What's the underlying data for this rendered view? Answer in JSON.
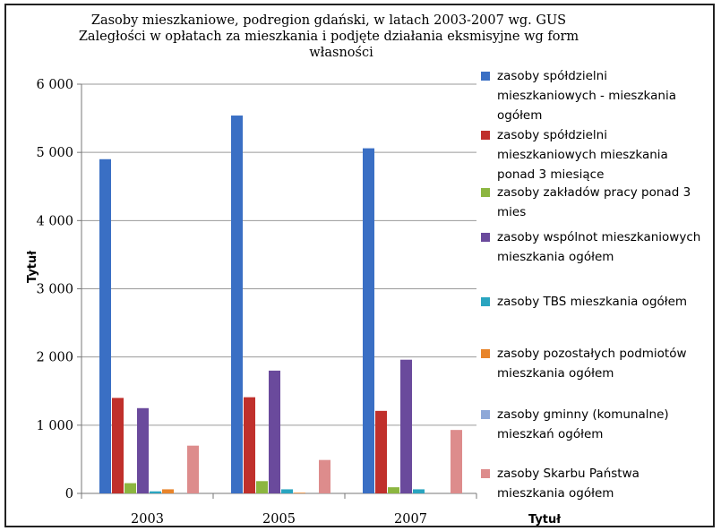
{
  "chart_data": {
    "type": "bar",
    "title_lines": [
      "Zasoby mieszkaniowe, podregion gdański, w latach 2003-2007 wg. GUS",
      "Zaległości w opłatach za mieszkania i podjęte działania eksmisyjne wg form",
      "własności"
    ],
    "xlabel": "Tytuł",
    "ylabel": "Tytuł",
    "categories": [
      "2003",
      "2005",
      "2007"
    ],
    "ylim": [
      0,
      6000
    ],
    "yticks": [
      0,
      1000,
      2000,
      3000,
      4000,
      5000,
      6000
    ],
    "ytick_labels": [
      "0",
      "1 000",
      "2 000",
      "3 000",
      "4 000",
      "5 000",
      "6 000"
    ],
    "grid": true,
    "legend_position": "right",
    "series": [
      {
        "name": "zasoby spółdzielni mieszkaniowych - mieszkania ogółem",
        "color": "#3a6fc4",
        "values": [
          4900,
          5540,
          5060
        ]
      },
      {
        "name": "zasoby spółdzielni mieszkaniowych mieszkania ponad 3 miesiące",
        "color": "#c0302c",
        "values": [
          1400,
          1410,
          1210
        ]
      },
      {
        "name": "zasoby zakładów pracy ponad 3 mies",
        "color": "#8cb640",
        "values": [
          150,
          180,
          90
        ]
      },
      {
        "name": "zasoby wspólnot mieszkaniowych mieszkania ogółem",
        "color": "#6a4a9c",
        "values": [
          1250,
          1800,
          1960
        ]
      },
      {
        "name": "zasoby TBS mieszkania ogółem",
        "color": "#2aa5c0",
        "values": [
          30,
          60,
          60
        ]
      },
      {
        "name": "zasoby pozostałych podmiotów mieszkania ogółem",
        "color": "#e8842a",
        "values": [
          60,
          10,
          0
        ]
      },
      {
        "name": "zasoby gminny (komunalne) mieszkań ogółem",
        "color": "#8ea8d8",
        "values": [
          0,
          0,
          0
        ]
      },
      {
        "name": "zasoby Skarbu Państwa mieszkania ogółem",
        "color": "#dd8c8c",
        "values": [
          700,
          490,
          930
        ]
      }
    ],
    "legend_lines": [
      [
        "zasoby spółdzielni",
        "mieszkaniowych - mieszkania",
        "ogółem"
      ],
      [
        "zasoby spółdzielni",
        "mieszkaniowych mieszkania",
        "ponad 3 miesiące"
      ],
      [
        "zasoby zakładów pracy ponad 3",
        "mies"
      ],
      [
        "zasoby wspólnot mieszkaniowych",
        "mieszkania ogółem"
      ],
      [
        "zasoby TBS mieszkania ogółem"
      ],
      [
        "zasoby pozostałych podmiotów",
        "mieszkania ogółem"
      ],
      [
        "zasoby gminny (komunalne)",
        "mieszkań ogółem"
      ],
      [
        "zasoby Skarbu Państwa",
        "mieszkania ogółem"
      ]
    ]
  }
}
